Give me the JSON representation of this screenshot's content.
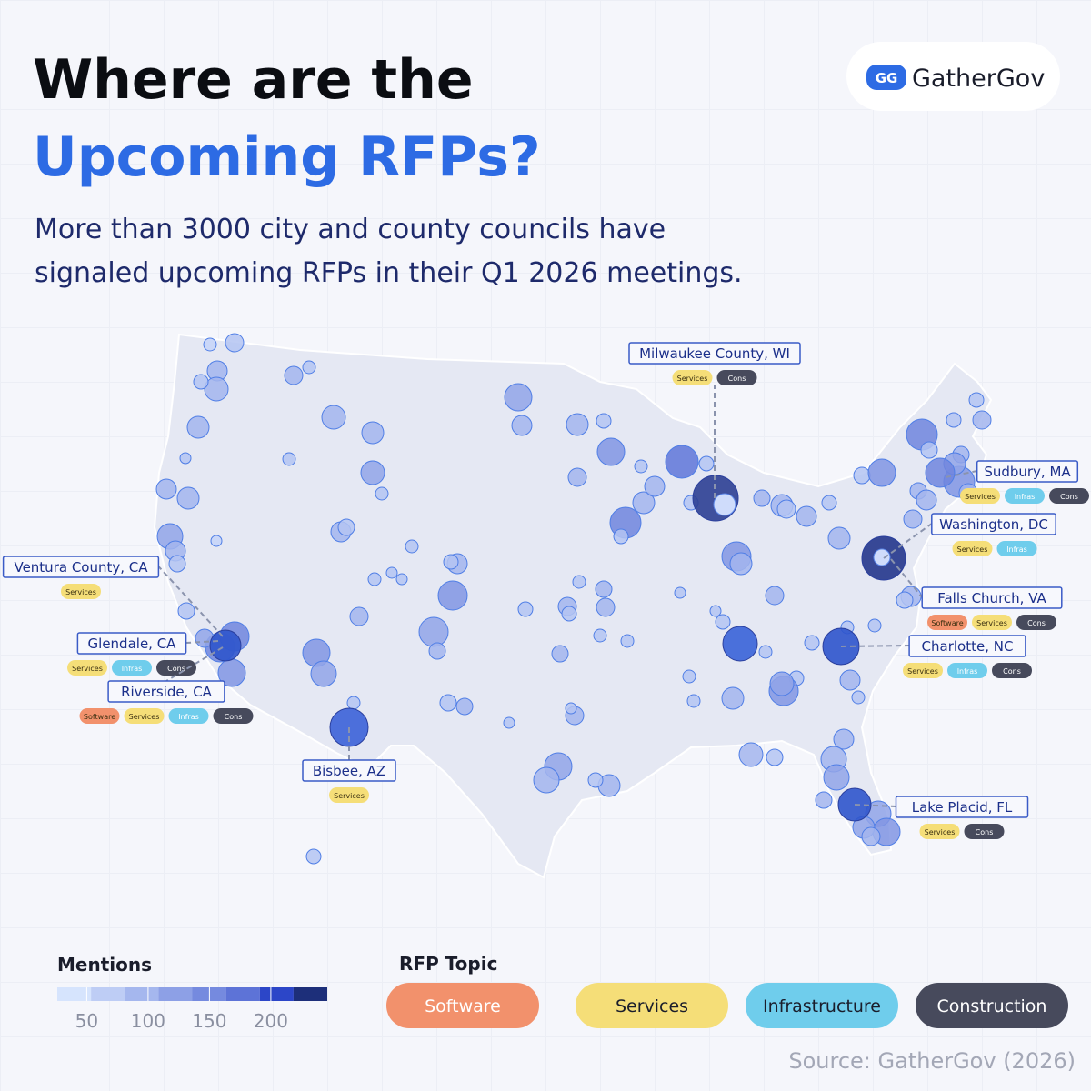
{
  "header": {
    "title_line1": "Where are the",
    "title_line2": "Upcoming RFPs?",
    "subtitle_lines": [
      "More than 3000 city and county councils have",
      "signaled upcoming RFPs in their Q1 2026 meetings."
    ],
    "logo": "GatherGov"
  },
  "locations": [
    {
      "name": "Milwaukee County, WI",
      "tags": [
        "Services",
        "Cons"
      ]
    },
    {
      "name": "Sudbury, MA",
      "tags": [
        "Services",
        "Infras",
        "Cons"
      ]
    },
    {
      "name": "Washington, DC",
      "tags": [
        "Services",
        "Infras"
      ]
    },
    {
      "name": "Falls Church, VA",
      "tags": [
        "Software",
        "Services",
        "Cons"
      ]
    },
    {
      "name": "Charlotte, NC",
      "tags": [
        "Services",
        "Infras",
        "Cons"
      ]
    },
    {
      "name": "Lake Placid, FL",
      "tags": [
        "Services",
        "Cons"
      ]
    },
    {
      "name": "Bisbee, AZ",
      "tags": [
        "Services"
      ]
    },
    {
      "name": "Ventura County, CA",
      "tags": [
        "Services"
      ]
    },
    {
      "name": "Glendale, CA",
      "tags": [
        "Services",
        "Infras",
        "Cons"
      ]
    },
    {
      "name": "Riverside, CA",
      "tags": [
        "Software",
        "Services",
        "Infras",
        "Cons"
      ]
    }
  ],
  "legend": {
    "mentions_title": "Mentions",
    "mentions_lim": [
      26,
      246
    ],
    "mentions_ticks": [
      50,
      100,
      150,
      200
    ],
    "topic_title": "RFP Topic",
    "topics": [
      {
        "name": "Software",
        "color": "#f2916c"
      },
      {
        "name": "Services",
        "color": "#f5de78"
      },
      {
        "name": "Infrastructure",
        "color": "#6fcdec"
      },
      {
        "name": "Construction",
        "color": "#474a5c"
      }
    ]
  },
  "source": "Source: GatherGov (2026)"
}
